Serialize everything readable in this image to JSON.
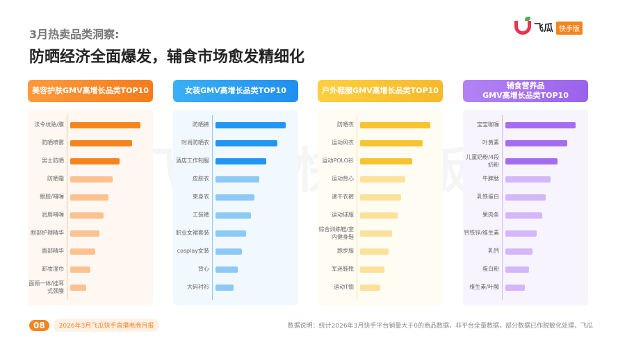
{
  "header": {
    "subtitle": "3月热卖品类洞察:",
    "title": "防晒经济全面爆发，辅食市场愈发精细化"
  },
  "logo": {
    "name": "飞瓜",
    "badge": "快手版"
  },
  "watermark": "飞瓜 快手版",
  "footer": {
    "page": "08",
    "report": "2026年3月飞瓜快手直播电商月报",
    "note": "数据说明：统计2026年3月快手平台销量大于0的商品数据，非平台全量数据，部分数据已作脱敏化处理，飞瓜"
  },
  "chart_data": [
    {
      "type": "bar",
      "orientation": "horizontal",
      "title": "美容护肤GMV高增长品类TOP10",
      "color": "#f5841f",
      "light_color": "#fbc18f",
      "header_gradient": [
        "#ff9a3c",
        "#f57c1a"
      ],
      "panel_bg": "#fff8f2",
      "categories": [
        "法令纹贴/膜",
        "防晒喷雾",
        "男士防晒",
        "防晒霜",
        "眼胶/啫喱",
        "润唇啫喱",
        "眼部护理精华",
        "面部精华",
        "卸妆湿巾",
        "面颈一体/挂耳式颈膜"
      ],
      "values": [
        100,
        88,
        70,
        60,
        54,
        48,
        42,
        36,
        29,
        23
      ]
    },
    {
      "type": "bar",
      "orientation": "horizontal",
      "title": "女装GMV高增长品类TOP10",
      "color": "#2196f3",
      "light_color": "#8ccaf5",
      "header_gradient": [
        "#3ab0f7",
        "#1e8ff0"
      ],
      "panel_bg": "#f1f8fe",
      "categories": [
        "防晒裤",
        "时尚防晒衣",
        "酒店工作制服",
        "皮肤衣",
        "束身衣",
        "工装裤",
        "职业女裙套装",
        "cosplay女装",
        "背心",
        "大码衬衫"
      ],
      "values": [
        100,
        88,
        72,
        62,
        55,
        50,
        44,
        38,
        32,
        26
      ]
    },
    {
      "type": "bar",
      "orientation": "horizontal",
      "title": "户外鞋服GMV高增长品类TOP10",
      "color": "#f7c430",
      "light_color": "#fbe19a",
      "header_gradient": [
        "#ffcf3f",
        "#f6b92a"
      ],
      "panel_bg": "#fffcf3",
      "categories": [
        "防晒衣",
        "运动风衣",
        "运动POLO衫",
        "运动背心",
        "速干衣裤",
        "运动球服",
        "综合训练鞋/室内健身鞋",
        "跑步服",
        "军迷鞋靴",
        "运动T恤"
      ],
      "values": [
        100,
        89,
        74,
        64,
        58,
        53,
        46,
        41,
        35,
        29
      ]
    },
    {
      "type": "bar",
      "orientation": "horizontal",
      "title": "辅食营养品\nGMV高增长品类TOP10",
      "color": "#a66cf0",
      "light_color": "#d4b7f8",
      "header_gradient": [
        "#b383f5",
        "#9a62ec"
      ],
      "panel_bg": "#f8f4fe",
      "categories": [
        "宝宝咖喱",
        "叶黄素",
        "儿童奶粉/4段奶粉",
        "牛脾肽",
        "乳铁蛋白",
        "果肉条",
        "钙铁锌/维生素",
        "乳钙",
        "蛋白粉",
        "维生素/叶酸"
      ],
      "values": [
        100,
        88,
        74,
        64,
        57,
        52,
        45,
        39,
        34,
        28
      ]
    }
  ]
}
